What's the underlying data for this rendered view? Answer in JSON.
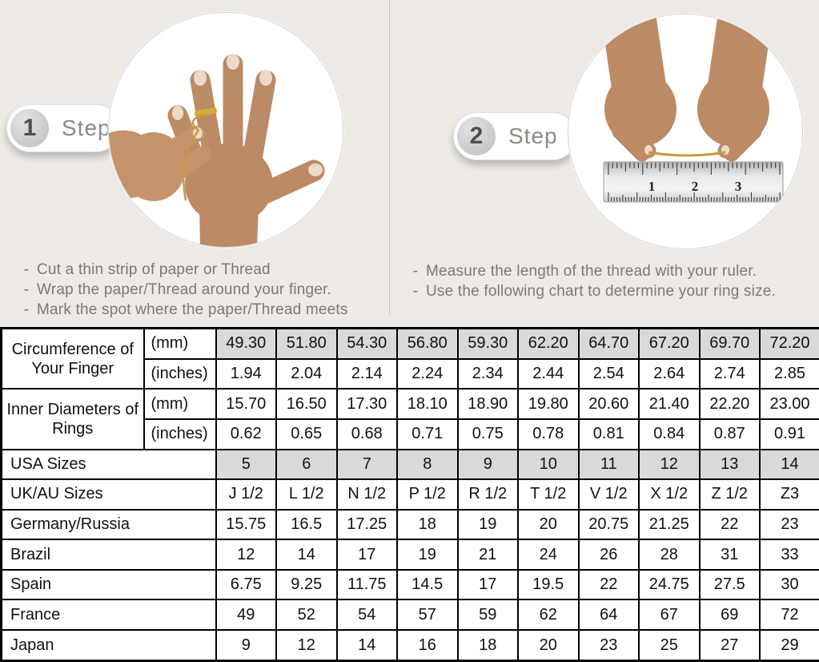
{
  "colors": {
    "page_bg": "#edeae6",
    "shaded_cell": "#d9d9d9",
    "thread_gold": "#c79a3a",
    "skin_tone": "#bc8a64",
    "step_text": "#8d8984",
    "bullet_text": "#7c7873"
  },
  "steps": [
    {
      "number": "1",
      "label": "Step",
      "bullets": [
        "Cut a thin strip of paper or Thread",
        "Wrap the paper/Thread around your finger.",
        "Mark the spot where the paper/Thread meets"
      ]
    },
    {
      "number": "2",
      "label": "Step",
      "bullets": [
        "Measure the length of the thread with your ruler.",
        "Use the following chart to determine your ring size."
      ]
    }
  ],
  "ruler": {
    "numbers": [
      "1",
      "2",
      "3"
    ]
  },
  "table": {
    "groups": [
      {
        "label": "Circumference of Your Finger",
        "rows": [
          {
            "unit": "(mm)",
            "shaded": true,
            "values": [
              "49.30",
              "51.80",
              "54.30",
              "56.80",
              "59.30",
              "62.20",
              "64.70",
              "67.20",
              "69.70",
              "72.20"
            ]
          },
          {
            "unit": "(inches)",
            "shaded": false,
            "values": [
              "1.94",
              "2.04",
              "2.14",
              "2.24",
              "2.34",
              "2.44",
              "2.54",
              "2.64",
              "2.74",
              "2.85"
            ]
          }
        ]
      },
      {
        "label": "Inner Diameters of Rings",
        "rows": [
          {
            "unit": "(mm)",
            "shaded": false,
            "values": [
              "15.70",
              "16.50",
              "17.30",
              "18.10",
              "18.90",
              "19.80",
              "20.60",
              "21.40",
              "22.20",
              "23.00"
            ]
          },
          {
            "unit": "(inches)",
            "shaded": false,
            "values": [
              "0.62",
              "0.65",
              "0.68",
              "0.71",
              "0.75",
              "0.78",
              "0.81",
              "0.84",
              "0.87",
              "0.91"
            ]
          }
        ]
      }
    ],
    "rows": [
      {
        "label": "USA Sizes",
        "shaded": true,
        "values": [
          "5",
          "6",
          "7",
          "8",
          "9",
          "10",
          "11",
          "12",
          "13",
          "14"
        ]
      },
      {
        "label": "UK/AU Sizes",
        "shaded": false,
        "values": [
          "J 1/2",
          "L 1/2",
          "N 1/2",
          "P 1/2",
          "R 1/2",
          "T 1/2",
          "V 1/2",
          "X 1/2",
          "Z 1/2",
          "Z3"
        ]
      },
      {
        "label": "Germany/Russia",
        "shaded": false,
        "values": [
          "15.75",
          "16.5",
          "17.25",
          "18",
          "19",
          "20",
          "20.75",
          "21.25",
          "22",
          "23"
        ]
      },
      {
        "label": "Brazil",
        "shaded": false,
        "values": [
          "12",
          "14",
          "17",
          "19",
          "21",
          "24",
          "26",
          "28",
          "31",
          "33"
        ]
      },
      {
        "label": "Spain",
        "shaded": false,
        "values": [
          "6.75",
          "9.25",
          "11.75",
          "14.5",
          "17",
          "19.5",
          "22",
          "24.75",
          "27.5",
          "30"
        ]
      },
      {
        "label": "France",
        "shaded": false,
        "values": [
          "49",
          "52",
          "54",
          "57",
          "59",
          "62",
          "64",
          "67",
          "69",
          "72"
        ]
      },
      {
        "label": "Japan",
        "shaded": false,
        "values": [
          "9",
          "12",
          "14",
          "16",
          "18",
          "20",
          "23",
          "25",
          "27",
          "29"
        ]
      }
    ]
  }
}
